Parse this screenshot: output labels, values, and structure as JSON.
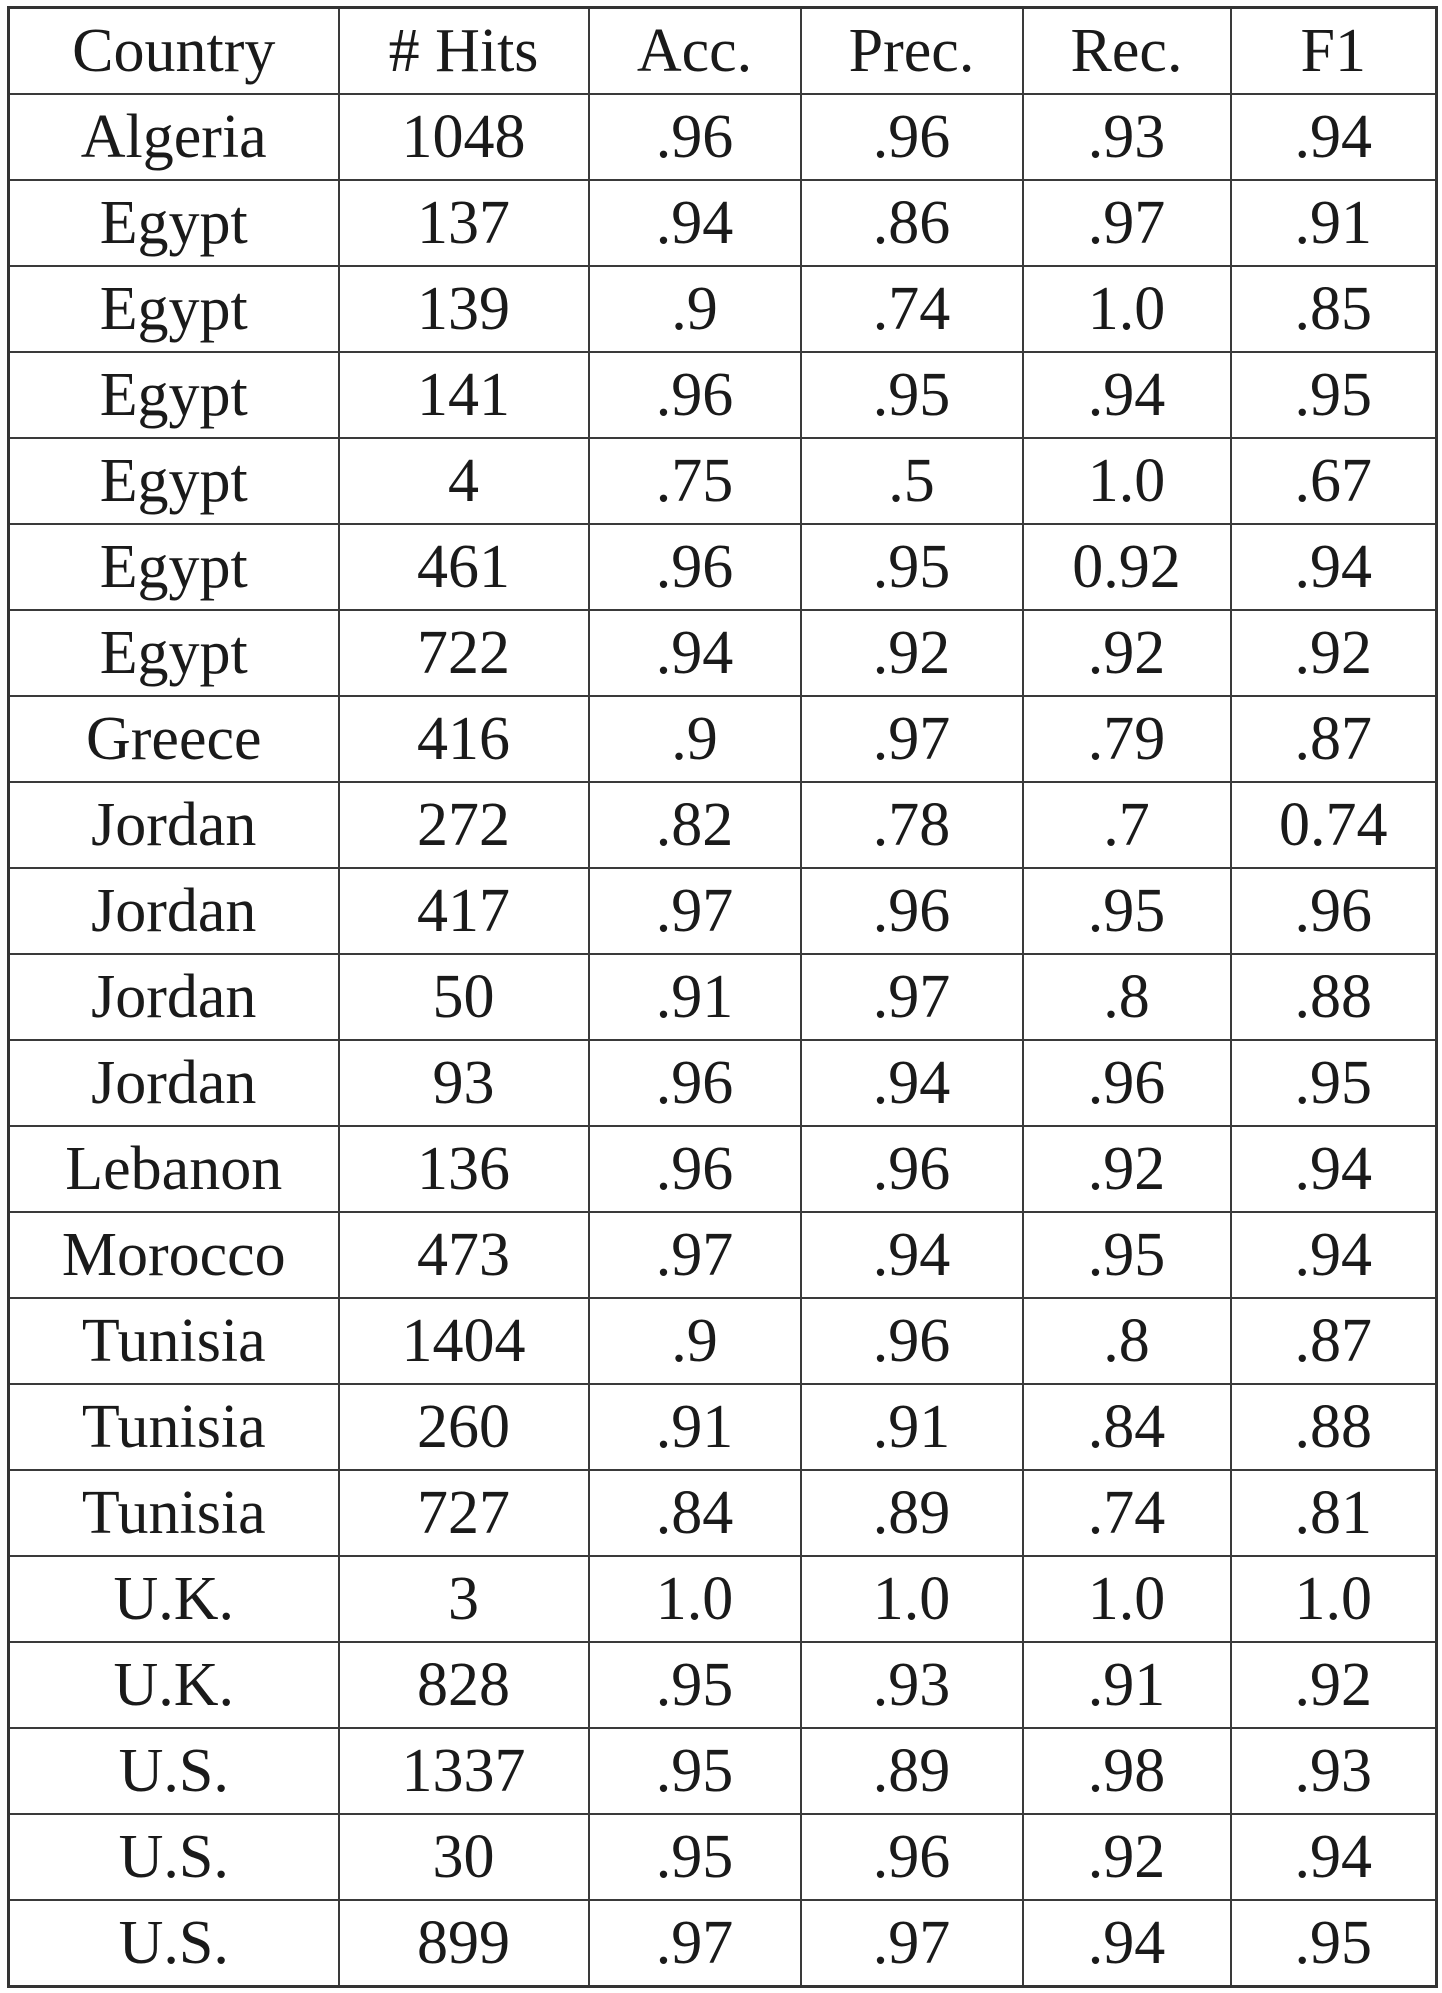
{
  "table": {
    "headers": [
      "Country",
      "# Hits",
      "Acc.",
      "Prec.",
      "Rec.",
      "F1"
    ],
    "rows": [
      [
        "Algeria",
        "1048",
        ".96",
        ".96",
        ".93",
        ".94"
      ],
      [
        "Egypt",
        "137",
        ".94",
        ".86",
        ".97",
        ".91"
      ],
      [
        "Egypt",
        "139",
        ".9",
        ".74",
        "1.0",
        ".85"
      ],
      [
        "Egypt",
        "141",
        ".96",
        ".95",
        ".94",
        ".95"
      ],
      [
        "Egypt",
        "4",
        ".75",
        ".5",
        "1.0",
        ".67"
      ],
      [
        "Egypt",
        "461",
        ".96",
        ".95",
        "0.92",
        ".94"
      ],
      [
        "Egypt",
        "722",
        ".94",
        ".92",
        ".92",
        ".92"
      ],
      [
        "Greece",
        "416",
        ".9",
        ".97",
        ".79",
        ".87"
      ],
      [
        "Jordan",
        "272",
        ".82",
        ".78",
        ".7",
        "0.74"
      ],
      [
        "Jordan",
        "417",
        ".97",
        ".96",
        ".95",
        ".96"
      ],
      [
        "Jordan",
        "50",
        ".91",
        ".97",
        ".8",
        ".88"
      ],
      [
        "Jordan",
        "93",
        ".96",
        ".94",
        ".96",
        ".95"
      ],
      [
        "Lebanon",
        "136",
        ".96",
        ".96",
        ".92",
        ".94"
      ],
      [
        "Morocco",
        "473",
        ".97",
        ".94",
        ".95",
        ".94"
      ],
      [
        "Tunisia",
        "1404",
        ".9",
        ".96",
        ".8",
        ".87"
      ],
      [
        "Tunisia",
        "260",
        ".91",
        ".91",
        ".84",
        ".88"
      ],
      [
        "Tunisia",
        "727",
        ".84",
        ".89",
        ".74",
        ".81"
      ],
      [
        "U.K.",
        "3",
        "1.0",
        "1.0",
        "1.0",
        "1.0"
      ],
      [
        "U.K.",
        "828",
        ".95",
        ".93",
        ".91",
        ".92"
      ],
      [
        "U.S.",
        "1337",
        ".95",
        ".89",
        ".98",
        ".93"
      ],
      [
        "U.S.",
        "30",
        ".95",
        ".96",
        ".92",
        ".94"
      ],
      [
        "U.S.",
        "899",
        ".97",
        ".97",
        ".94",
        ".95"
      ]
    ]
  }
}
